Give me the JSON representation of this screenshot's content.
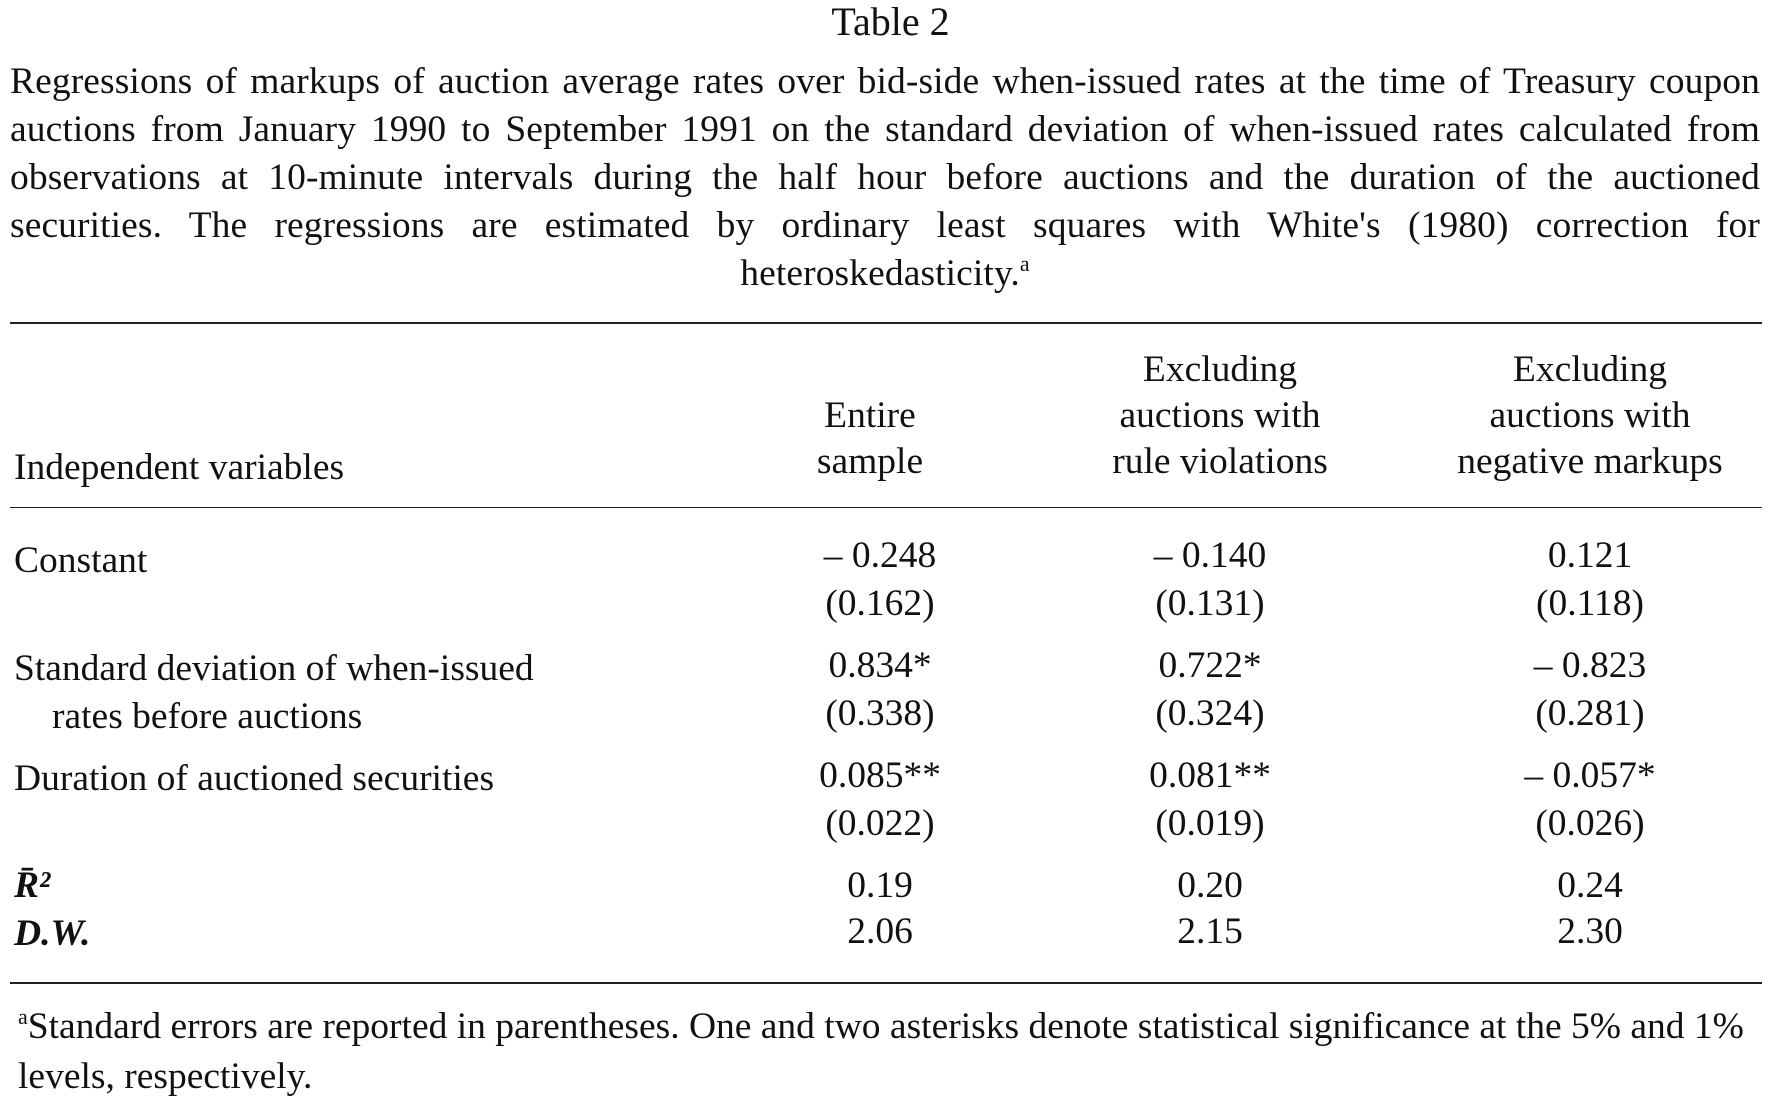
{
  "table": {
    "title": "Table 2",
    "caption": "Regressions of markups of auction average rates over bid-side when-issued rates at the time of Treasury coupon auctions from January 1990 to September 1991 on the standard deviation of when-issued rates calculated from observations at 10-minute intervals during the half hour before auctions and the duration of the auctioned securities. The regressions are estimated by ordinary least squares with White's (1980) correction for heteroskedasticity.",
    "caption_footnote_mark": "a",
    "header": {
      "independent_variables": "Independent variables",
      "col1_line1": "Entire",
      "col1_line2": "sample",
      "col2_line1": "Excluding",
      "col2_line2": "auctions with",
      "col2_line3": "rule violations",
      "col3_line1": "Excluding",
      "col3_line2": "auctions with",
      "col3_line3": "negative markups"
    },
    "rows": {
      "constant": {
        "label": "Constant",
        "coef": [
          "– 0.248",
          "– 0.140",
          "0.121"
        ],
        "se": [
          "(0.162)",
          "(0.131)",
          "(0.118)"
        ]
      },
      "stddev": {
        "label_line1": "Standard deviation of when-issued",
        "label_line2": "rates before auctions",
        "coef": [
          "0.834*",
          "0.722*",
          "– 0.823"
        ],
        "se": [
          "(0.338)",
          "(0.324)",
          "(0.281)"
        ]
      },
      "duration": {
        "label": "Duration of auctioned securities",
        "coef": [
          "0.085**",
          "0.081**",
          "– 0.057*"
        ],
        "se": [
          "(0.022)",
          "(0.019)",
          "(0.026)"
        ]
      },
      "rbar2": {
        "label": "R̄²",
        "values": [
          "0.19",
          "0.20",
          "0.24"
        ]
      },
      "dw": {
        "label": "D.W.",
        "values": [
          "2.06",
          "2.15",
          "2.30"
        ]
      }
    },
    "footnote": {
      "mark": "a",
      "text": "Standard errors are reported in parentheses. One and two asterisks denote statistical significance at the 5% and 1% levels, respectively."
    }
  }
}
